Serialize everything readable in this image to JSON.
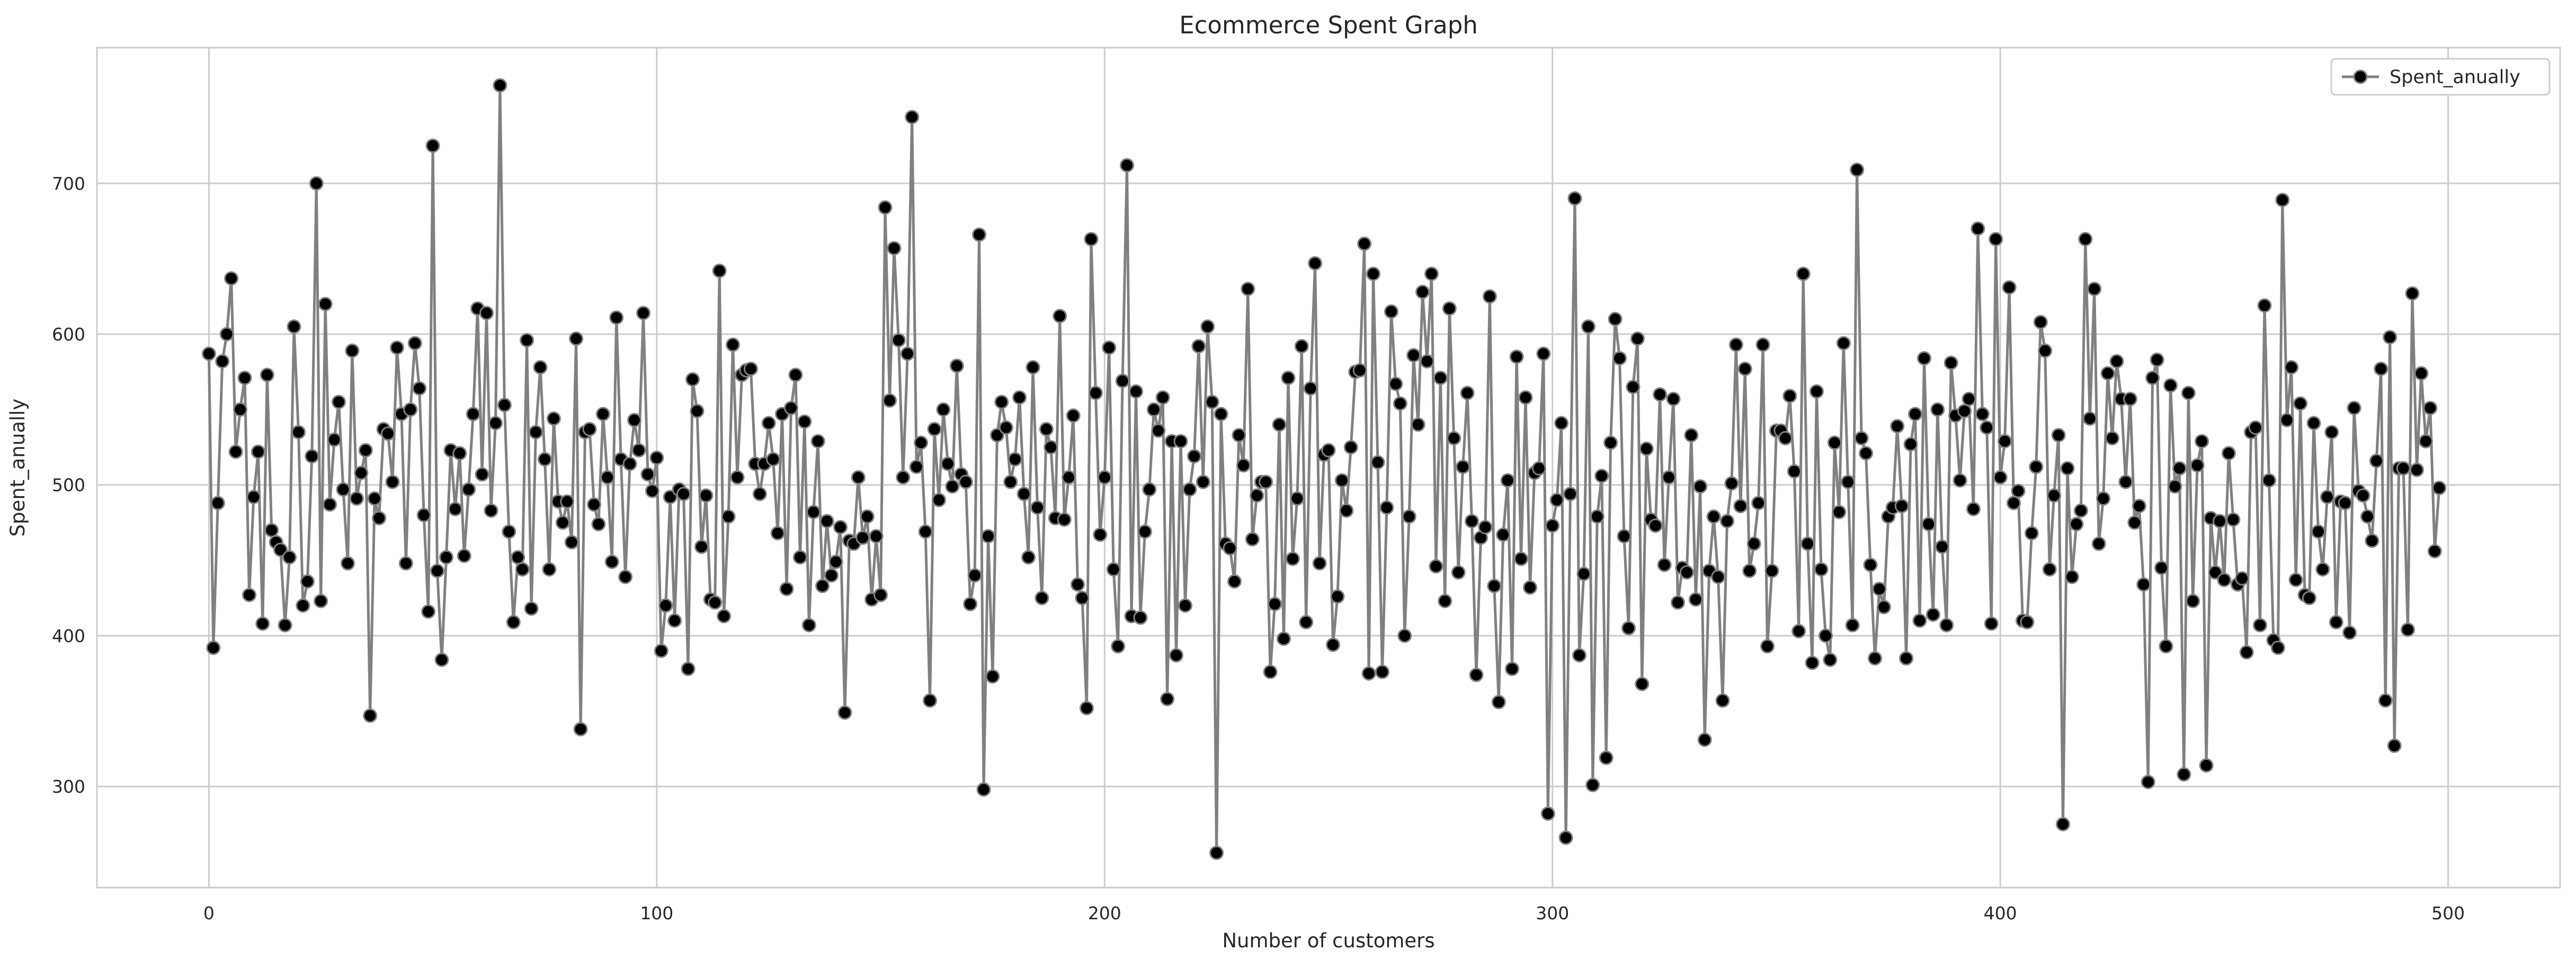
{
  "chart_data": {
    "type": "line",
    "title": "Ecommerce Spent Graph",
    "xlabel": "Number of customers",
    "ylabel": "Spent_anually",
    "xlim": [
      -25,
      525
    ],
    "ylim": [
      233,
      790
    ],
    "xticks": [
      0,
      100,
      200,
      300,
      400,
      500
    ],
    "yticks": [
      300,
      400,
      500,
      600,
      700
    ],
    "grid": true,
    "legend_position": "top-right",
    "colors": {
      "line": "#808080",
      "marker_fill": "#000000",
      "marker_edge": "#808080",
      "grid": "#cccccc",
      "frame": "#cccccc"
    },
    "series": [
      {
        "name": "Spent_anually",
        "x_start": 0,
        "x_step": 1,
        "values": [
          587,
          392,
          488,
          582,
          600,
          637,
          522,
          550,
          571,
          427,
          492,
          522,
          408,
          573,
          470,
          462,
          457,
          407,
          452,
          605,
          535,
          420,
          436,
          519,
          700,
          423,
          620,
          487,
          530,
          555,
          497,
          448,
          589,
          491,
          508,
          523,
          347,
          491,
          478,
          537,
          534,
          502,
          591,
          547,
          448,
          550,
          594,
          564,
          480,
          416,
          725,
          443,
          384,
          452,
          523,
          484,
          521,
          453,
          497,
          547,
          617,
          507,
          614,
          483,
          541,
          765,
          553,
          469,
          409,
          452,
          444,
          596,
          418,
          535,
          578,
          517,
          444,
          544,
          489,
          475,
          489,
          462,
          597,
          338,
          535,
          537,
          487,
          474,
          547,
          505,
          449,
          611,
          517,
          439,
          514,
          543,
          523,
          614,
          507,
          496,
          518,
          390,
          420,
          492,
          410,
          497,
          494,
          378,
          570,
          549,
          459,
          493,
          424,
          422,
          642,
          413,
          479,
          593,
          505,
          573,
          576,
          577,
          514,
          494,
          514,
          541,
          517,
          468,
          547,
          431,
          551,
          573,
          452,
          542,
          407,
          482,
          529,
          433,
          476,
          440,
          449,
          472,
          349,
          463,
          461,
          505,
          465,
          479,
          424,
          466,
          427,
          684,
          556,
          657,
          596,
          505,
          587,
          744,
          512,
          528,
          469,
          357,
          537,
          490,
          550,
          514,
          499,
          579,
          507,
          502,
          421,
          440,
          666,
          298,
          466,
          373,
          533,
          555,
          538,
          502,
          517,
          558,
          494,
          452,
          578,
          485,
          425,
          537,
          525,
          478,
          612,
          477,
          505,
          546,
          434,
          425,
          352,
          663,
          561,
          467,
          505,
          591,
          444,
          393,
          569,
          712,
          413,
          562,
          412,
          469,
          497,
          550,
          536,
          558,
          358,
          529,
          387,
          529,
          420,
          497,
          519,
          592,
          502,
          605,
          555,
          256,
          547,
          461,
          458,
          436,
          533,
          513,
          630,
          464,
          493,
          502,
          502,
          376,
          421,
          540,
          398,
          571,
          451,
          491,
          592,
          409,
          564,
          647,
          448,
          520,
          523,
          394,
          426,
          503,
          483,
          525,
          575,
          576,
          660,
          375,
          640,
          515,
          376,
          485,
          615,
          567,
          554,
          400,
          479,
          586,
          540,
          628,
          582,
          640,
          446,
          571,
          423,
          617,
          531,
          442,
          512,
          561,
          476,
          374,
          465,
          472,
          625,
          433,
          356,
          467,
          503,
          378,
          585,
          451,
          558,
          432,
          508,
          511,
          587,
          282,
          473,
          490,
          541,
          266,
          494,
          690,
          387,
          441,
          605,
          301,
          479,
          506,
          319,
          528,
          610,
          584,
          466,
          405,
          565,
          597,
          368,
          524,
          477,
          473,
          560,
          447,
          505,
          557,
          422,
          445,
          442,
          533,
          424,
          499,
          331,
          443,
          479,
          439,
          357,
          476,
          501,
          593,
          486,
          577,
          443,
          461,
          488,
          593,
          393,
          443,
          536,
          536,
          531,
          559,
          509,
          403,
          640,
          461,
          382,
          562,
          444,
          400,
          384,
          528,
          482,
          594,
          502,
          407,
          709,
          531,
          521,
          447,
          385,
          431,
          419,
          479,
          485,
          539,
          486,
          385,
          527,
          547,
          410,
          584,
          474,
          414,
          550,
          459,
          407,
          581,
          546,
          503,
          549,
          557,
          484,
          670,
          547,
          538,
          408,
          663,
          505,
          529,
          631,
          488,
          496,
          410,
          409,
          468,
          512,
          608,
          589,
          444,
          493,
          533,
          275,
          511,
          439,
          474,
          483,
          663,
          544,
          630,
          461,
          491,
          574,
          531,
          582,
          557,
          502,
          557,
          475,
          486,
          434,
          303,
          571,
          583,
          445,
          393,
          566,
          499,
          511,
          308,
          561,
          423,
          513,
          529,
          314,
          478,
          442,
          476,
          437,
          521,
          477,
          434,
          438,
          389,
          535,
          538,
          407,
          619,
          503,
          397,
          392,
          689,
          543,
          578,
          437,
          554,
          427,
          425,
          541,
          469,
          444,
          492,
          535,
          409,
          489,
          488,
          402,
          551,
          496,
          493,
          479,
          463,
          516,
          577,
          357,
          598,
          327,
          511,
          511,
          404,
          627,
          510,
          574,
          529,
          551,
          456,
          498
        ]
      }
    ]
  }
}
